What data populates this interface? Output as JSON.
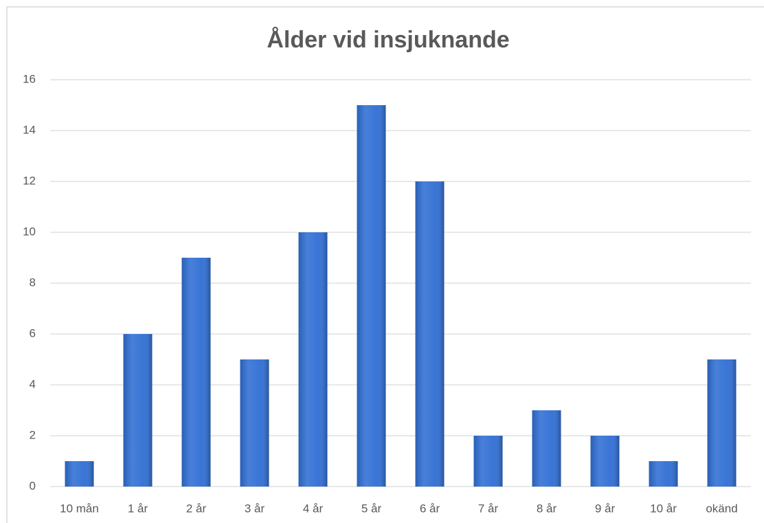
{
  "chart_data": {
    "type": "bar",
    "title": "Ålder vid insjuknande",
    "categories": [
      "10 mån",
      "1 år",
      "2 år",
      "3 år",
      "4 år",
      "5 år",
      "6 år",
      "7 år",
      "8 år",
      "9 år",
      "10 år",
      "okänd"
    ],
    "values": [
      1,
      6,
      9,
      5,
      10,
      15,
      12,
      2,
      3,
      2,
      1,
      5
    ],
    "color": "#2f6ed4",
    "ylim": [
      0,
      16
    ],
    "yticks": [
      0,
      2,
      4,
      6,
      8,
      10,
      12,
      14,
      16
    ],
    "grid": true
  }
}
